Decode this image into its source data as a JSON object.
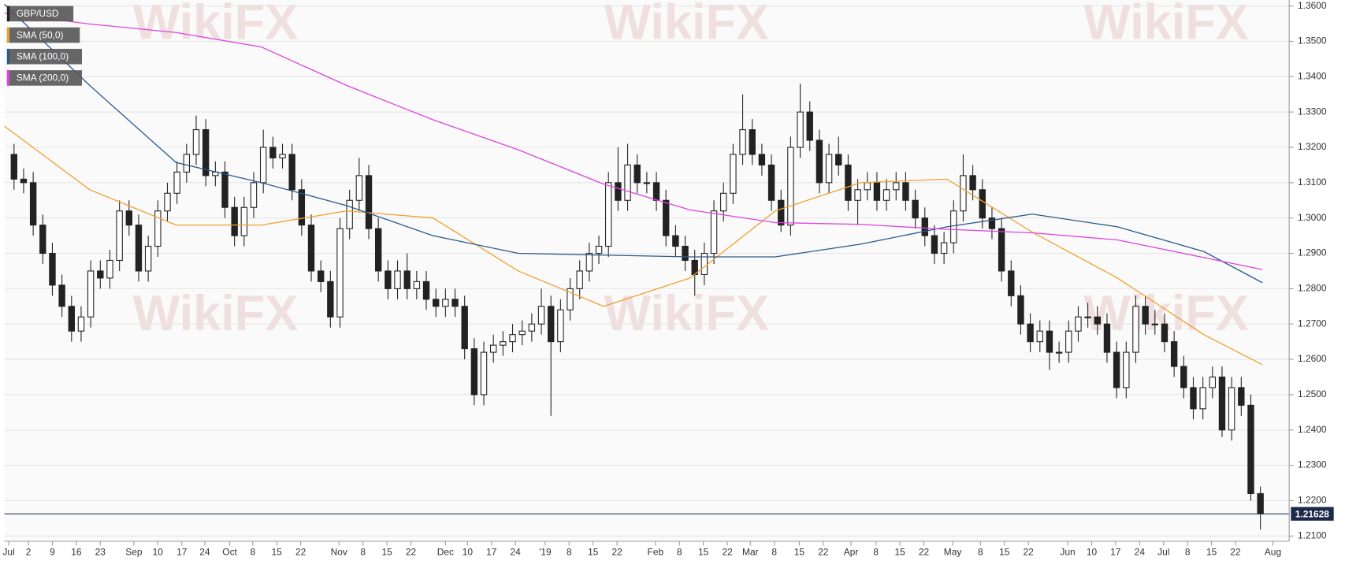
{
  "chart_data": {
    "type": "candlestick",
    "watermark": "WikiFX",
    "last_price": 1.21628,
    "xlim": [
      -1,
      133
    ],
    "ylim": [
      1.2085,
      1.3617
    ],
    "yticks": [
      {
        "value": 1.21,
        "label": "1.2100"
      },
      {
        "value": 1.22,
        "label": "1.2200"
      },
      {
        "value": 1.23,
        "label": "1.2300"
      },
      {
        "value": 1.24,
        "label": "1.2400"
      },
      {
        "value": 1.25,
        "label": "1.2500"
      },
      {
        "value": 1.26,
        "label": "1.2600"
      },
      {
        "value": 1.27,
        "label": "1.2700"
      },
      {
        "value": 1.28,
        "label": "1.2800"
      },
      {
        "value": 1.29,
        "label": "1.2900"
      },
      {
        "value": 1.3,
        "label": "1.3000"
      },
      {
        "value": 1.31,
        "label": "1.3100"
      },
      {
        "value": 1.32,
        "label": "1.3200"
      },
      {
        "value": 1.33,
        "label": "1.3300"
      },
      {
        "value": 1.34,
        "label": "1.3400"
      },
      {
        "value": 1.35,
        "label": "1.3500"
      },
      {
        "value": 1.36,
        "label": "1.3600"
      }
    ],
    "xticks": [
      {
        "value": -0.55,
        "label": "Jul"
      },
      {
        "value": 1.5,
        "label": "2"
      },
      {
        "value": 4.0,
        "label": "9"
      },
      {
        "value": 6.5,
        "label": "16"
      },
      {
        "value": 9.0,
        "label": "23"
      },
      {
        "value": 12.5,
        "label": "Sep"
      },
      {
        "value": 15.0,
        "label": "10"
      },
      {
        "value": 17.5,
        "label": "17"
      },
      {
        "value": 19.9,
        "label": "24"
      },
      {
        "value": 22.5,
        "label": "Oct"
      },
      {
        "value": 24.9,
        "label": "8"
      },
      {
        "value": 27.4,
        "label": "15"
      },
      {
        "value": 29.9,
        "label": "22"
      },
      {
        "value": 33.9,
        "label": "Nov"
      },
      {
        "value": 36.4,
        "label": "8"
      },
      {
        "value": 38.9,
        "label": "15"
      },
      {
        "value": 41.4,
        "label": "22"
      },
      {
        "value": 45.0,
        "label": "Dec"
      },
      {
        "value": 47.3,
        "label": "10"
      },
      {
        "value": 49.8,
        "label": "17"
      },
      {
        "value": 52.3,
        "label": "24"
      },
      {
        "value": 55.4,
        "label": "'19"
      },
      {
        "value": 57.9,
        "label": "8"
      },
      {
        "value": 60.4,
        "label": "15"
      },
      {
        "value": 62.9,
        "label": "22"
      },
      {
        "value": 66.9,
        "label": "Feb"
      },
      {
        "value": 69.4,
        "label": "8"
      },
      {
        "value": 71.9,
        "label": "15"
      },
      {
        "value": 74.4,
        "label": "22"
      },
      {
        "value": 76.8,
        "label": "Mar"
      },
      {
        "value": 79.3,
        "label": "8"
      },
      {
        "value": 81.9,
        "label": "15"
      },
      {
        "value": 84.4,
        "label": "22"
      },
      {
        "value": 87.3,
        "label": "Apr"
      },
      {
        "value": 89.9,
        "label": "8"
      },
      {
        "value": 92.4,
        "label": "15"
      },
      {
        "value": 94.9,
        "label": "22"
      },
      {
        "value": 97.9,
        "label": "May"
      },
      {
        "value": 100.8,
        "label": "8"
      },
      {
        "value": 103.3,
        "label": "15"
      },
      {
        "value": 105.8,
        "label": "22"
      },
      {
        "value": 109.9,
        "label": "Jun"
      },
      {
        "value": 112.4,
        "label": "10"
      },
      {
        "value": 114.9,
        "label": "17"
      },
      {
        "value": 117.4,
        "label": "24"
      },
      {
        "value": 119.9,
        "label": "Jul"
      },
      {
        "value": 122.4,
        "label": "8"
      },
      {
        "value": 124.9,
        "label": "15"
      },
      {
        "value": 127.4,
        "label": "22"
      },
      {
        "value": 131.3,
        "label": "Aug"
      }
    ],
    "grid": true,
    "series": [
      {
        "name": "GBP/USD",
        "color": "#222222",
        "values": [
          [
            1.318,
            1.321,
            1.308,
            1.311
          ],
          [
            1.311,
            1.314,
            1.307,
            1.31
          ],
          [
            1.31,
            1.313,
            1.295,
            1.298
          ],
          [
            1.298,
            1.301,
            1.287,
            1.29
          ],
          [
            1.29,
            1.293,
            1.278,
            1.281
          ],
          [
            1.281,
            1.284,
            1.272,
            1.275
          ],
          [
            1.275,
            1.278,
            1.265,
            1.268
          ],
          [
            1.268,
            1.275,
            1.265,
            1.272
          ],
          [
            1.272,
            1.288,
            1.269,
            1.285
          ],
          [
            1.285,
            1.288,
            1.28,
            1.283
          ],
          [
            1.283,
            1.291,
            1.28,
            1.288
          ],
          [
            1.288,
            1.305,
            1.285,
            1.302
          ],
          [
            1.302,
            1.305,
            1.295,
            1.298
          ],
          [
            1.298,
            1.301,
            1.282,
            1.285
          ],
          [
            1.285,
            1.295,
            1.282,
            1.292
          ],
          [
            1.292,
            1.305,
            1.289,
            1.302
          ],
          [
            1.302,
            1.31,
            1.299,
            1.307
          ],
          [
            1.307,
            1.316,
            1.304,
            1.313
          ],
          [
            1.313,
            1.321,
            1.31,
            1.318
          ],
          [
            1.318,
            1.329,
            1.315,
            1.325
          ],
          [
            1.325,
            1.328,
            1.309,
            1.312
          ],
          [
            1.312,
            1.316,
            1.309,
            1.313
          ],
          [
            1.313,
            1.316,
            1.3,
            1.303
          ],
          [
            1.303,
            1.306,
            1.292,
            1.295
          ],
          [
            1.295,
            1.306,
            1.292,
            1.303
          ],
          [
            1.303,
            1.313,
            1.3,
            1.31
          ],
          [
            1.31,
            1.325,
            1.307,
            1.32
          ],
          [
            1.32,
            1.323,
            1.314,
            1.317
          ],
          [
            1.317,
            1.321,
            1.314,
            1.318
          ],
          [
            1.318,
            1.321,
            1.305,
            1.308
          ],
          [
            1.308,
            1.311,
            1.295,
            1.298
          ],
          [
            1.298,
            1.301,
            1.282,
            1.285
          ],
          [
            1.285,
            1.288,
            1.279,
            1.282
          ],
          [
            1.282,
            1.285,
            1.269,
            1.272
          ],
          [
            1.272,
            1.3,
            1.269,
            1.297
          ],
          [
            1.297,
            1.308,
            1.294,
            1.305
          ],
          [
            1.305,
            1.317,
            1.302,
            1.312
          ],
          [
            1.312,
            1.315,
            1.294,
            1.297
          ],
          [
            1.297,
            1.3,
            1.282,
            1.285
          ],
          [
            1.285,
            1.288,
            1.277,
            1.28
          ],
          [
            1.28,
            1.288,
            1.277,
            1.285
          ],
          [
            1.285,
            1.29,
            1.277,
            1.28
          ],
          [
            1.28,
            1.285,
            1.277,
            1.282
          ],
          [
            1.282,
            1.285,
            1.274,
            1.277
          ],
          [
            1.277,
            1.28,
            1.272,
            1.275
          ],
          [
            1.275,
            1.28,
            1.272,
            1.277
          ],
          [
            1.277,
            1.28,
            1.272,
            1.275
          ],
          [
            1.275,
            1.278,
            1.26,
            1.263
          ],
          [
            1.263,
            1.266,
            1.247,
            1.25
          ],
          [
            1.25,
            1.265,
            1.247,
            1.262
          ],
          [
            1.262,
            1.267,
            1.259,
            1.264
          ],
          [
            1.264,
            1.268,
            1.261,
            1.265
          ],
          [
            1.265,
            1.27,
            1.262,
            1.267
          ],
          [
            1.267,
            1.271,
            1.264,
            1.268
          ],
          [
            1.268,
            1.273,
            1.265,
            1.27
          ],
          [
            1.27,
            1.28,
            1.267,
            1.275
          ],
          [
            1.275,
            1.278,
            1.244,
            1.265
          ],
          [
            1.265,
            1.277,
            1.262,
            1.274
          ],
          [
            1.274,
            1.283,
            1.271,
            1.28
          ],
          [
            1.28,
            1.288,
            1.277,
            1.285
          ],
          [
            1.285,
            1.293,
            1.282,
            1.29
          ],
          [
            1.29,
            1.295,
            1.287,
            1.292
          ],
          [
            1.292,
            1.313,
            1.289,
            1.31
          ],
          [
            1.31,
            1.32,
            1.302,
            1.305
          ],
          [
            1.305,
            1.321,
            1.302,
            1.315
          ],
          [
            1.315,
            1.318,
            1.307,
            1.31
          ],
          [
            1.31,
            1.313,
            1.307,
            1.31
          ],
          [
            1.31,
            1.313,
            1.302,
            1.305
          ],
          [
            1.305,
            1.308,
            1.292,
            1.295
          ],
          [
            1.295,
            1.298,
            1.289,
            1.292
          ],
          [
            1.292,
            1.295,
            1.285,
            1.288
          ],
          [
            1.288,
            1.291,
            1.278,
            1.284
          ],
          [
            1.284,
            1.293,
            1.281,
            1.29
          ],
          [
            1.29,
            1.305,
            1.287,
            1.302
          ],
          [
            1.302,
            1.31,
            1.299,
            1.307
          ],
          [
            1.307,
            1.321,
            1.304,
            1.318
          ],
          [
            1.318,
            1.335,
            1.315,
            1.325
          ],
          [
            1.325,
            1.328,
            1.315,
            1.318
          ],
          [
            1.318,
            1.321,
            1.312,
            1.315
          ],
          [
            1.315,
            1.318,
            1.302,
            1.305
          ],
          [
            1.305,
            1.308,
            1.296,
            1.298
          ],
          [
            1.298,
            1.323,
            1.295,
            1.32
          ],
          [
            1.32,
            1.338,
            1.317,
            1.33
          ],
          [
            1.33,
            1.333,
            1.319,
            1.322
          ],
          [
            1.322,
            1.325,
            1.307,
            1.31
          ],
          [
            1.31,
            1.321,
            1.307,
            1.318
          ],
          [
            1.318,
            1.323,
            1.312,
            1.315
          ],
          [
            1.315,
            1.318,
            1.302,
            1.305
          ],
          [
            1.305,
            1.311,
            1.298,
            1.308
          ],
          [
            1.308,
            1.313,
            1.305,
            1.31
          ],
          [
            1.31,
            1.313,
            1.302,
            1.305
          ],
          [
            1.305,
            1.311,
            1.302,
            1.308
          ],
          [
            1.308,
            1.313,
            1.305,
            1.31
          ],
          [
            1.31,
            1.313,
            1.302,
            1.305
          ],
          [
            1.305,
            1.308,
            1.297,
            1.3
          ],
          [
            1.3,
            1.303,
            1.292,
            1.295
          ],
          [
            1.295,
            1.298,
            1.287,
            1.29
          ],
          [
            1.29,
            1.296,
            1.287,
            1.293
          ],
          [
            1.293,
            1.305,
            1.29,
            1.302
          ],
          [
            1.302,
            1.318,
            1.299,
            1.312
          ],
          [
            1.312,
            1.315,
            1.305,
            1.308
          ],
          [
            1.308,
            1.311,
            1.297,
            1.3
          ],
          [
            1.3,
            1.303,
            1.294,
            1.297
          ],
          [
            1.297,
            1.3,
            1.282,
            1.285
          ],
          [
            1.285,
            1.288,
            1.275,
            1.278
          ],
          [
            1.278,
            1.281,
            1.267,
            1.27
          ],
          [
            1.27,
            1.273,
            1.262,
            1.265
          ],
          [
            1.265,
            1.271,
            1.262,
            1.268
          ],
          [
            1.268,
            1.271,
            1.257,
            1.262
          ],
          [
            1.262,
            1.265,
            1.259,
            1.262
          ],
          [
            1.262,
            1.271,
            1.259,
            1.268
          ],
          [
            1.268,
            1.275,
            1.265,
            1.272
          ],
          [
            1.272,
            1.276,
            1.269,
            1.272
          ],
          [
            1.272,
            1.275,
            1.267,
            1.27
          ],
          [
            1.27,
            1.273,
            1.259,
            1.262
          ],
          [
            1.262,
            1.265,
            1.249,
            1.252
          ],
          [
            1.252,
            1.265,
            1.249,
            1.262
          ],
          [
            1.262,
            1.278,
            1.259,
            1.275
          ],
          [
            1.275,
            1.278,
            1.267,
            1.27
          ],
          [
            1.27,
            1.274,
            1.267,
            1.27
          ],
          [
            1.27,
            1.273,
            1.262,
            1.265
          ],
          [
            1.265,
            1.268,
            1.255,
            1.258
          ],
          [
            1.258,
            1.261,
            1.249,
            1.252
          ],
          [
            1.252,
            1.255,
            1.243,
            1.246
          ],
          [
            1.246,
            1.255,
            1.243,
            1.252
          ],
          [
            1.252,
            1.258,
            1.249,
            1.255
          ],
          [
            1.255,
            1.258,
            1.238,
            1.24
          ],
          [
            1.24,
            1.255,
            1.237,
            1.252
          ],
          [
            1.252,
            1.255,
            1.244,
            1.247
          ],
          [
            1.247,
            1.25,
            1.22,
            1.222
          ],
          [
            1.222,
            1.224,
            1.2118,
            1.21628
          ]
        ]
      },
      {
        "name": "SMA (50,0)",
        "color": "#f0a030",
        "x": [
          -1,
          7.9,
          16.9,
          25.8,
          34.7,
          43.7,
          52.6,
          61.5,
          70.5,
          79.4,
          88.3,
          97.3,
          106.2,
          115.1,
          124.1,
          130.2
        ],
        "values": [
          1.326,
          1.308,
          1.298,
          1.298,
          1.302,
          1.3,
          1.285,
          1.275,
          1.283,
          1.302,
          1.31,
          1.311,
          1.296,
          1.283,
          1.267,
          1.2585
        ]
      },
      {
        "name": "SMA (100,0)",
        "color": "#2a5a8c",
        "x": [
          -1,
          7.9,
          16.9,
          25.8,
          34.7,
          43.7,
          52.6,
          61.5,
          70.5,
          79.4,
          88.3,
          97.3,
          106.2,
          115.1,
          124.1,
          130.2
        ],
        "values": [
          1.3605,
          1.3375,
          1.3157,
          1.31,
          1.3035,
          1.295,
          1.29,
          1.2895,
          1.289,
          1.289,
          1.2926,
          1.2975,
          1.3011,
          1.2975,
          1.2905,
          1.2817
        ]
      },
      {
        "name": "SMA (200,0)",
        "color": "#dd44dd",
        "x": [
          -1,
          7.9,
          16.9,
          25.8,
          34.7,
          43.7,
          52.6,
          61.5,
          70.5,
          79.4,
          88.3,
          97.3,
          106.2,
          115.1,
          124.1,
          130.2
        ],
        "values": [
          1.358,
          1.3549,
          1.3525,
          1.3484,
          1.3375,
          1.3278,
          1.3193,
          1.3096,
          1.3023,
          1.2987,
          1.2982,
          1.2968,
          1.2958,
          1.2938,
          1.2888,
          1.2854
        ]
      }
    ]
  }
}
